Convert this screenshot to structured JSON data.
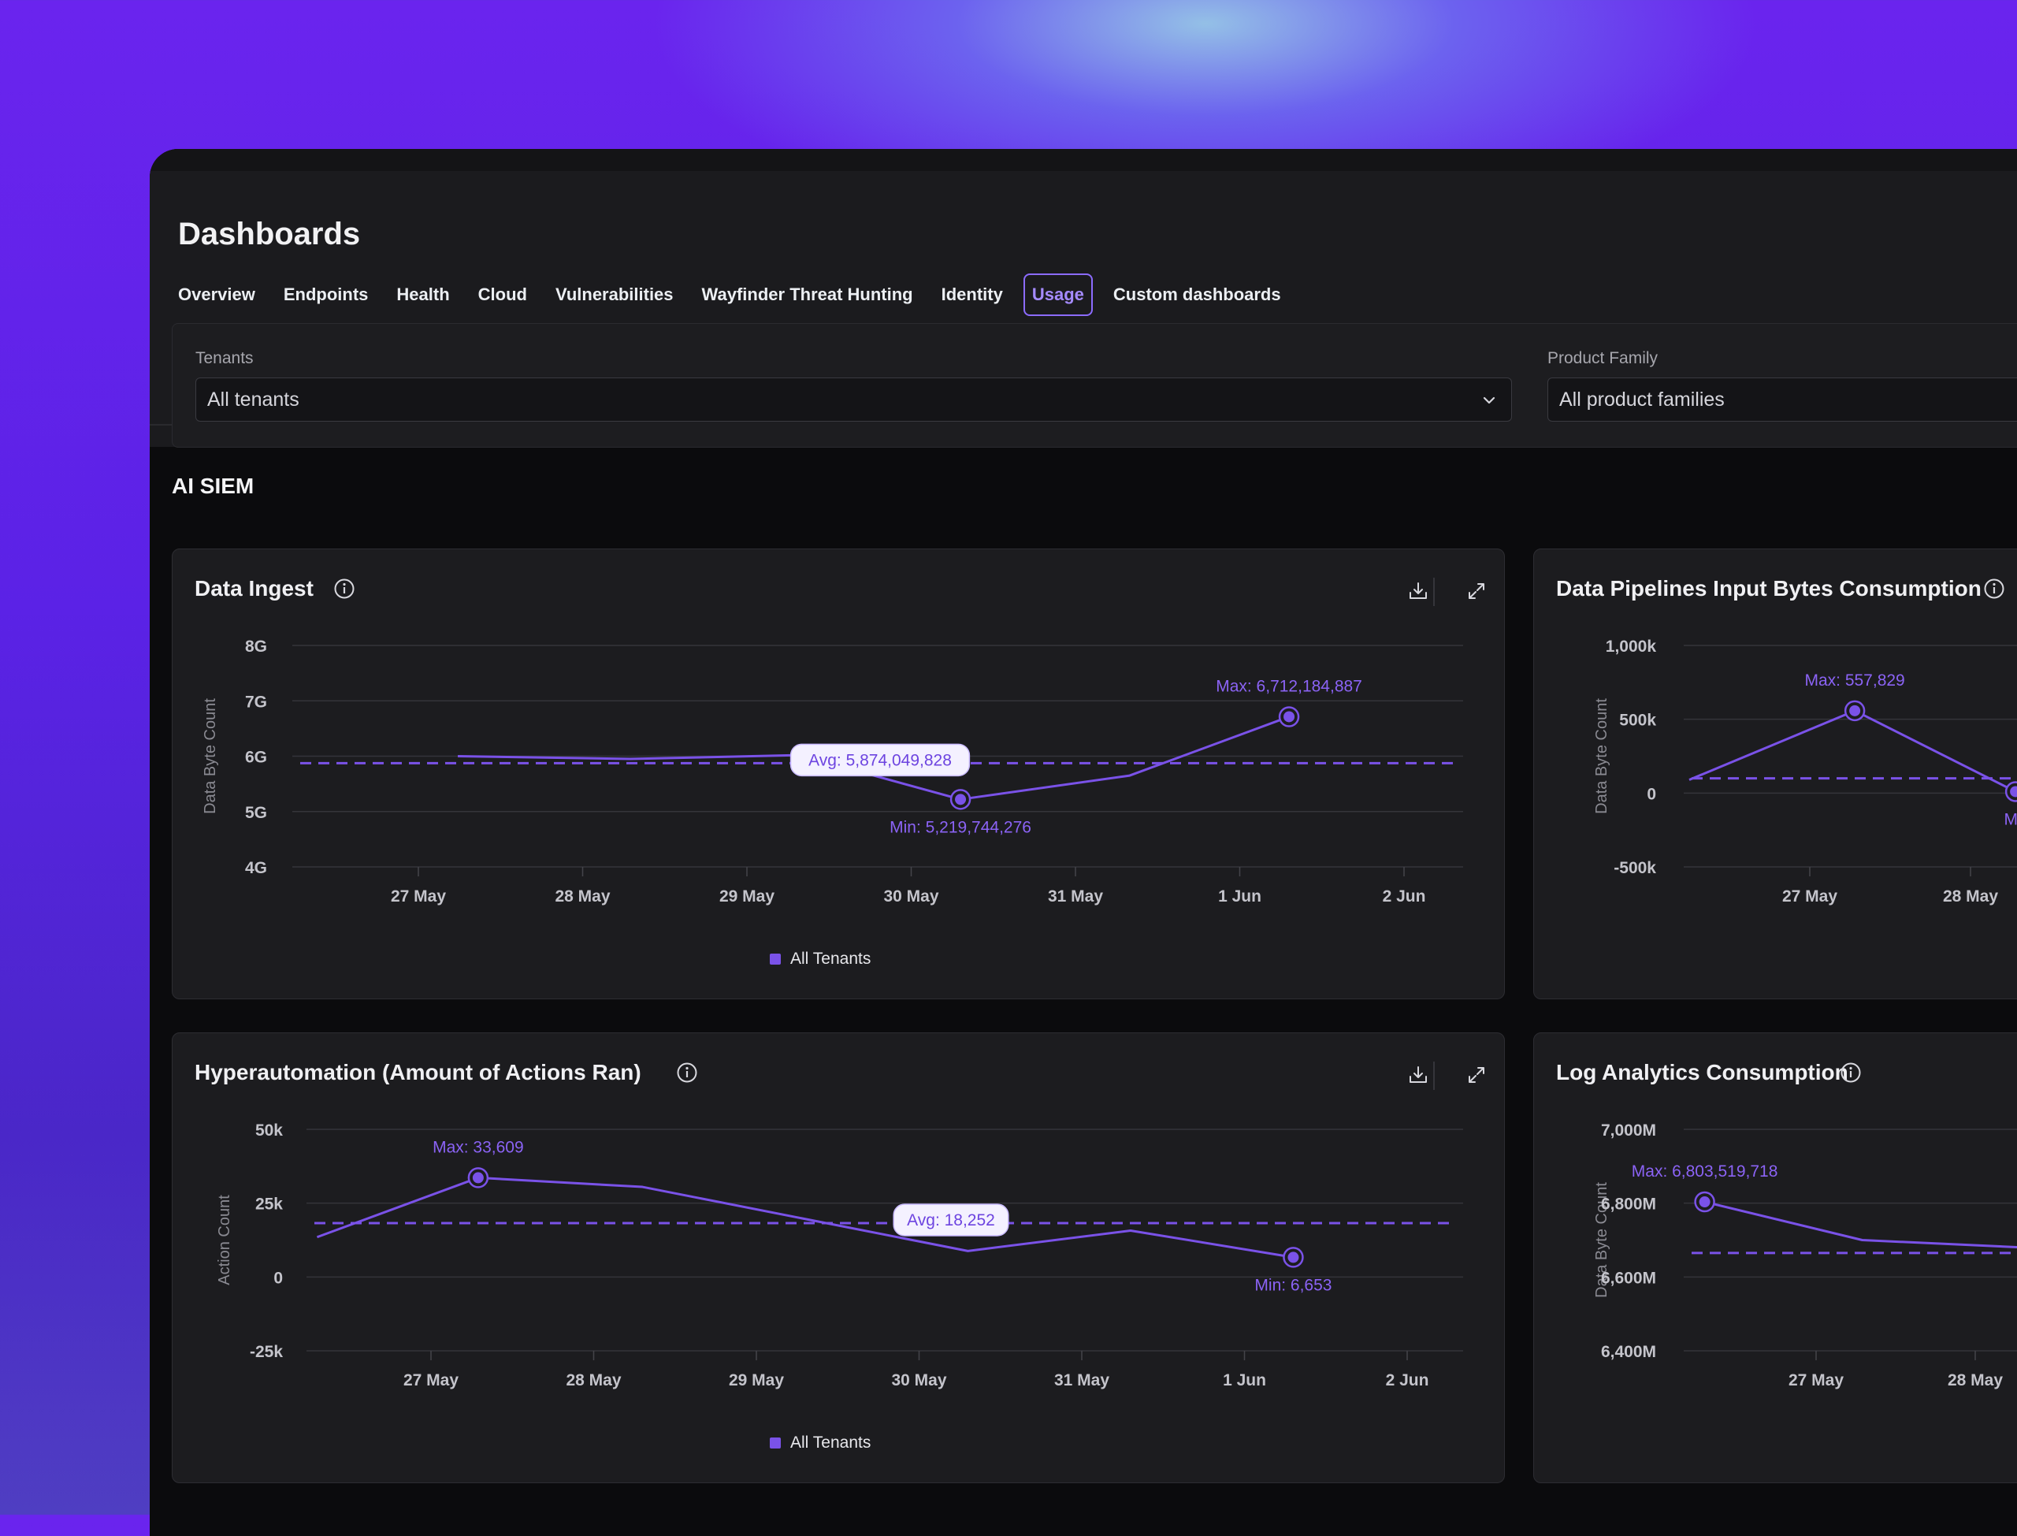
{
  "page": {
    "title": "Dashboards",
    "tabs": [
      {
        "label": "Overview",
        "active": false
      },
      {
        "label": "Endpoints",
        "active": false
      },
      {
        "label": "Health",
        "active": false
      },
      {
        "label": "Cloud",
        "active": false
      },
      {
        "label": "Vulnerabilities",
        "active": false
      },
      {
        "label": "Wayfinder Threat Hunting",
        "active": false
      },
      {
        "label": "Identity",
        "active": false
      },
      {
        "label": "Usage",
        "active": true
      },
      {
        "label": "Custom dashboards",
        "active": false
      }
    ]
  },
  "filters": {
    "tenants": {
      "label": "Tenants",
      "value": "All tenants"
    },
    "product_family": {
      "label": "Product Family",
      "value": "All product families"
    }
  },
  "section": {
    "title": "AI SIEM"
  },
  "colors": {
    "accent": "#7a52e8",
    "accent_text": "#8b63f5",
    "card": "#1c1c1f"
  },
  "icons": {
    "info": "info-circle-icon",
    "download": "download-icon",
    "expand": "expand-icon",
    "chevron": "chevron-down-icon"
  },
  "chart_data": [
    {
      "type": "line",
      "title": "Data Ingest",
      "ylabel": "Data Byte Count",
      "ylim": [
        4000000000,
        8000000000
      ],
      "yticks": [
        8000000000,
        7000000000,
        6000000000,
        5000000000,
        4000000000
      ],
      "ytick_labels": [
        "8G",
        "7G",
        "6G",
        "5G",
        "4G"
      ],
      "xticks": [
        "27 May",
        "28 May",
        "29 May",
        "30 May",
        "31 May",
        "1 Jun",
        "2 Jun"
      ],
      "x": [
        0.24,
        1.29,
        2.32,
        3.3,
        4.33,
        5.3
      ],
      "series": [
        {
          "name": "All Tenants",
          "values": [
            6000000000,
            5950000000,
            6020000000,
            5219744276,
            5650000000,
            6712184887
          ]
        }
      ],
      "avg": 5874049828,
      "annotations": {
        "max": "Max: 6,712,184,887",
        "min": "Min: 5,219,744,276",
        "avg": "Avg: 5,874,049,828"
      },
      "legend": "All Tenants"
    },
    {
      "type": "line",
      "title": "Data Pipelines Input Bytes Consumption",
      "ylabel": "Data Byte Count",
      "ylim": [
        -500000,
        1000000
      ],
      "yticks": [
        1000000,
        500000,
        0,
        -500000
      ],
      "ytick_labels": [
        "1,000k",
        "500k",
        "0",
        "-500k"
      ],
      "xticks": [
        "27 May",
        "28 May"
      ],
      "x": [
        -0.75,
        0.28,
        1.28
      ],
      "series": [
        {
          "name": "All Tenants",
          "values": [
            90000,
            557829,
            10000
          ]
        }
      ],
      "avg": 100000,
      "annotations": {
        "max": "Max: 557,829",
        "min": "Mir"
      }
    },
    {
      "type": "line",
      "title": "Hyperautomation (Amount of Actions Ran)",
      "ylabel": "Action Count",
      "ylim": [
        -25000,
        50000
      ],
      "yticks": [
        50000,
        25000,
        0,
        -25000
      ],
      "ytick_labels": [
        "50k",
        "25k",
        "0",
        "-25k"
      ],
      "xticks": [
        "27 May",
        "28 May",
        "29 May",
        "30 May",
        "31 May",
        "1 Jun",
        "2 Jun"
      ],
      "x": [
        -0.7,
        0.29,
        1.3,
        3.3,
        4.3,
        5.3
      ],
      "series": [
        {
          "name": "All Tenants",
          "values": [
            13500,
            33609,
            30500,
            8800,
            15700,
            6653
          ]
        }
      ],
      "avg": 18252,
      "annotations": {
        "max": "Max: 33,609",
        "min": "Min: 6,653",
        "avg": "Avg: 18,252"
      },
      "legend": "All Tenants"
    },
    {
      "type": "line",
      "title": "Log Analytics Consumption",
      "ylabel": "Data Byte Count",
      "ylim": [
        6400000000,
        7000000000
      ],
      "yticks": [
        7000000000,
        6800000000,
        6600000000,
        6400000000
      ],
      "ytick_labels": [
        "7,000M",
        "6,800M",
        "6,600M",
        "6,400M"
      ],
      "xticks": [
        "27 May",
        "28 May"
      ],
      "x": [
        -0.7,
        0.29,
        1.3
      ],
      "series": [
        {
          "name": "All Tenants",
          "values": [
            6803519718,
            6700000000,
            6680000000
          ]
        }
      ],
      "avg": 6665000000,
      "annotations": {
        "max": "Max: 6,803,519,718"
      }
    }
  ]
}
